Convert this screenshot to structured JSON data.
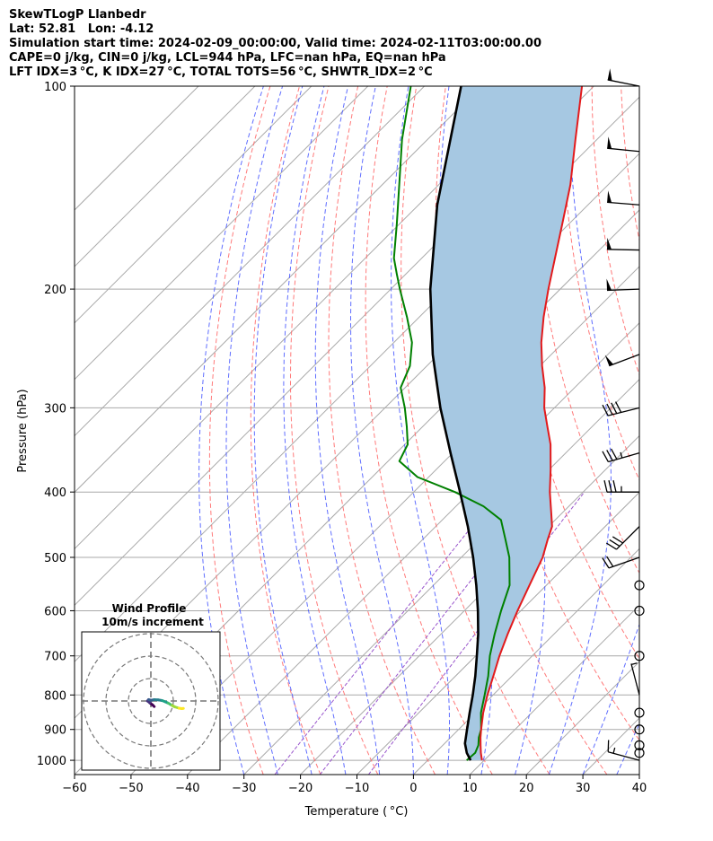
{
  "titles": {
    "line1": "SkewTLogP Llanbedr",
    "line2": "Lat: 52.81   Lon: -4.12",
    "line3": "Simulation start time: 2024-02-09_00:00:00, Valid time: 2024-02-11T03:00:00.00",
    "line4": "CAPE=0 j/kg, CIN=0 j/kg, LCL=944 hPa, LFC=nan hPa, EQ=nan hPa",
    "line5": "LFT IDX=3 °C, K IDX=27 °C, TOTAL TOTS=56 °C, SHWTR_IDX=2 °C"
  },
  "chart_data": {
    "type": "line",
    "xlabel": "Temperature ( °C)",
    "ylabel": "Pressure (hPa)",
    "x_ticks": [
      -60,
      -50,
      -40,
      -30,
      -20,
      -10,
      0,
      10,
      20,
      30,
      40
    ],
    "x_tick_labels": [
      "−60",
      "−50",
      "−40",
      "−30",
      "−20",
      "−10",
      "0",
      "10",
      "20",
      "30",
      "40"
    ],
    "y_ticks": [
      100,
      200,
      300,
      400,
      500,
      600,
      700,
      800,
      900,
      1000
    ],
    "xlim": [
      -60,
      40
    ],
    "ylim": [
      1050,
      100
    ],
    "y_scale": "log",
    "skew": "45 degrees",
    "grid": true,
    "colors": {
      "temperature": "#e31a1c",
      "dewpoint": "#008000",
      "parcel": "#000000",
      "cape_fill": "#a6c8e2",
      "dry_adiabat": "#ff6b6b",
      "moist_adiabat": "#4455ff",
      "mixing_ratio": "#9955cc",
      "isotherm": "#a9a9a9"
    },
    "series": [
      {
        "key": "temperature",
        "points": [
          [
            1000,
            9.6
          ],
          [
            975,
            8.1
          ],
          [
            950,
            6.7
          ],
          [
            925,
            5.3
          ],
          [
            900,
            4.0
          ],
          [
            850,
            1.4
          ],
          [
            800,
            -1.0
          ],
          [
            750,
            -3.3
          ],
          [
            700,
            -5.8
          ],
          [
            650,
            -8.2
          ],
          [
            600,
            -10.6
          ],
          [
            550,
            -13.0
          ],
          [
            500,
            -15.6
          ],
          [
            470,
            -17.9
          ],
          [
            450,
            -19.4
          ],
          [
            430,
            -21.9
          ],
          [
            400,
            -25.9
          ],
          [
            370,
            -29.8
          ],
          [
            340,
            -34.2
          ],
          [
            320,
            -37.9
          ],
          [
            300,
            -41.8
          ],
          [
            280,
            -45.3
          ],
          [
            260,
            -49.6
          ],
          [
            240,
            -53.9
          ],
          [
            220,
            -58.0
          ],
          [
            200,
            -62.1
          ],
          [
            180,
            -66.4
          ],
          [
            160,
            -71.2
          ],
          [
            140,
            -76.7
          ],
          [
            120,
            -83.8
          ],
          [
            100,
            -92.1
          ]
        ]
      },
      {
        "key": "dewpoint",
        "points": [
          [
            1000,
            6.9
          ],
          [
            975,
            7.1
          ],
          [
            950,
            6.3
          ],
          [
            925,
            5.0
          ],
          [
            900,
            4.0
          ],
          [
            850,
            1.0
          ],
          [
            800,
            -1.5
          ],
          [
            750,
            -4.2
          ],
          [
            700,
            -7.5
          ],
          [
            650,
            -10.5
          ],
          [
            600,
            -13.5
          ],
          [
            550,
            -16.5
          ],
          [
            500,
            -21.5
          ],
          [
            470,
            -25.4
          ],
          [
            440,
            -29.6
          ],
          [
            420,
            -35.1
          ],
          [
            400,
            -42.7
          ],
          [
            380,
            -52.0
          ],
          [
            360,
            -58.0
          ],
          [
            340,
            -59.5
          ],
          [
            320,
            -62.8
          ],
          [
            300,
            -66.5
          ],
          [
            280,
            -70.8
          ],
          [
            260,
            -73.0
          ],
          [
            240,
            -76.8
          ],
          [
            220,
            -82.2
          ],
          [
            200,
            -88.4
          ],
          [
            190,
            -91.6
          ],
          [
            180,
            -94.9
          ],
          [
            160,
            -100.5
          ],
          [
            140,
            -107.0
          ],
          [
            120,
            -114.5
          ],
          [
            100,
            -122.4
          ]
        ]
      },
      {
        "key": "parcel",
        "points": [
          [
            1000,
            7.6
          ],
          [
            975,
            5.6
          ],
          [
            944,
            3.6
          ],
          [
            900,
            1.5
          ],
          [
            850,
            -1.0
          ],
          [
            800,
            -3.6
          ],
          [
            750,
            -6.5
          ],
          [
            700,
            -9.8
          ],
          [
            650,
            -13.4
          ],
          [
            600,
            -17.6
          ],
          [
            550,
            -22.4
          ],
          [
            500,
            -27.9
          ],
          [
            450,
            -34.3
          ],
          [
            400,
            -41.8
          ],
          [
            350,
            -50.4
          ],
          [
            300,
            -60.2
          ],
          [
            250,
            -71.0
          ],
          [
            200,
            -83.0
          ],
          [
            150,
            -96.7
          ],
          [
            100,
            -113.5
          ]
        ]
      }
    ],
    "inset": {
      "title_line1": "Wind Profile",
      "title_line2": "10m/s increment",
      "hodograph": [
        [
          1.5,
          -2.5
        ],
        [
          0.8,
          -1.8
        ],
        [
          -0.5,
          -0.8
        ],
        [
          -1.5,
          0.0
        ],
        [
          -1.0,
          0.6
        ],
        [
          0.2,
          0.3
        ],
        [
          1.5,
          0.6
        ],
        [
          3.2,
          0.5
        ],
        [
          5.0,
          0.2
        ],
        [
          6.5,
          -0.4
        ],
        [
          7.8,
          -1.0
        ],
        [
          8.8,
          -1.6
        ],
        [
          9.5,
          -2.0
        ],
        [
          10.6,
          -2.6
        ],
        [
          12.5,
          -3.2
        ],
        [
          13.8,
          -3.4
        ],
        [
          14.5,
          -3.3
        ]
      ]
    },
    "wind_barbs": [
      {
        "p": 100,
        "u": 50,
        "v": -10
      },
      {
        "p": 125,
        "u": 50,
        "v": -5
      },
      {
        "p": 150,
        "u": 50,
        "v": -4
      },
      {
        "p": 175,
        "u": 50,
        "v": -1
      },
      {
        "p": 200,
        "u": 50,
        "v": 2
      },
      {
        "p": 250,
        "u": 45,
        "v": 17
      },
      {
        "p": 300,
        "u": 40,
        "v": 10
      },
      {
        "p": 350,
        "u": 35,
        "v": 10
      },
      {
        "p": 400,
        "u": 36,
        "v": 0
      },
      {
        "p": 450,
        "u": 20,
        "v": 20
      },
      {
        "p": 500,
        "u": 20,
        "v": 7
      },
      {
        "p": 550,
        "u": 0,
        "v": 0
      },
      {
        "p": 600,
        "u": 0,
        "v": 0
      },
      {
        "p": 700,
        "u": 0,
        "v": 0
      },
      {
        "p": 800,
        "u": 1.2,
        "v": -4.6
      },
      {
        "p": 850,
        "u": 0,
        "v": 0
      },
      {
        "p": 900,
        "u": 0,
        "v": 0
      },
      {
        "p": 950,
        "u": 0,
        "v": 0
      },
      {
        "p": 975,
        "u": 0,
        "v": 0
      },
      {
        "p": 1000,
        "u": 15,
        "v": -4
      }
    ]
  }
}
